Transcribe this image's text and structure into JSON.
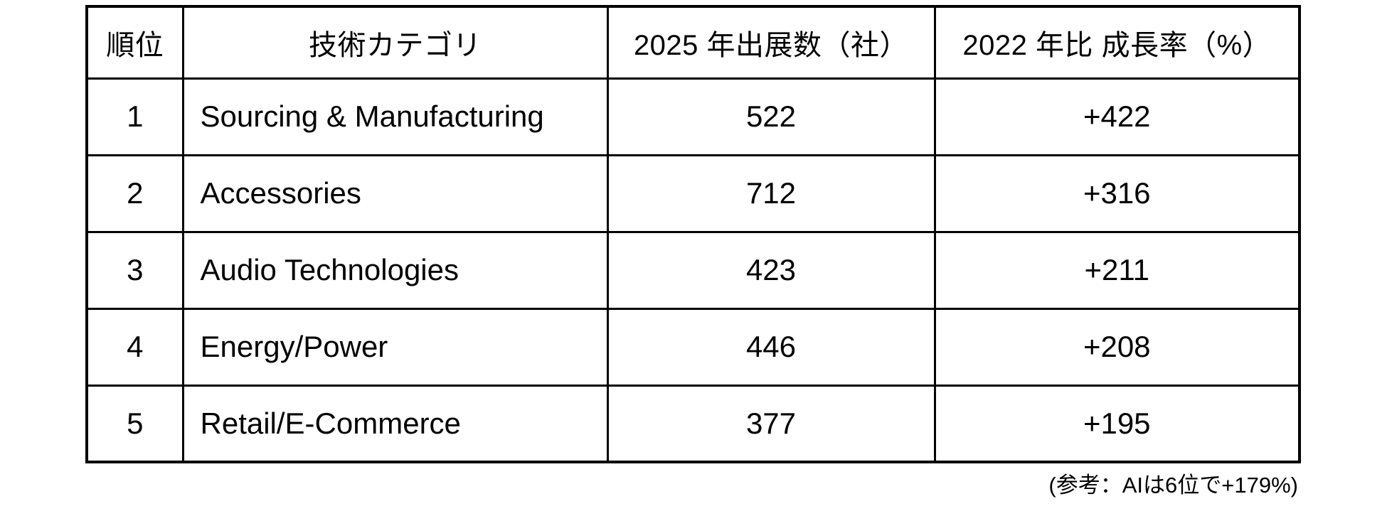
{
  "document": {
    "background_color": "#ffffff",
    "text_color": "#000000",
    "border_color": "#000000"
  },
  "table": {
    "headers": [
      "順位",
      "技術カテゴリ",
      "2025 年出展数（社）",
      "2022 年比 成長率（%）"
    ],
    "rows": [
      {
        "rank": "1",
        "category": "Sourcing & Manufacturing",
        "exhibitors_2025": "522",
        "growth_vs_2022": "+422"
      },
      {
        "rank": "2",
        "category": "Accessories",
        "exhibitors_2025": "712",
        "growth_vs_2022": "+316"
      },
      {
        "rank": "3",
        "category": "Audio Technologies",
        "exhibitors_2025": "423",
        "growth_vs_2022": "+211"
      },
      {
        "rank": "4",
        "category": "Energy/Power",
        "exhibitors_2025": "446",
        "growth_vs_2022": "+208"
      },
      {
        "rank": "5",
        "category": "Retail/E-Commerce",
        "exhibitors_2025": "377",
        "growth_vs_2022": "+195"
      }
    ]
  },
  "footnote": "(参考：AIは6位で+179%)"
}
